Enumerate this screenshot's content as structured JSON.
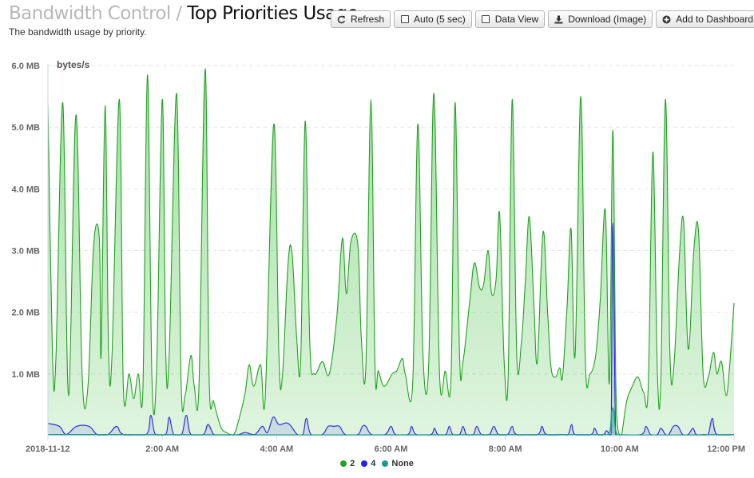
{
  "header": {
    "crumb": "Bandwidth Control",
    "separator": "/",
    "title": "Top Priorities Usage",
    "subtitle": "The bandwidth usage by priority."
  },
  "toolbar": {
    "refresh": "Refresh",
    "auto": "Auto (5 sec)",
    "data_view": "Data View",
    "download": "Download (Image)",
    "add_dashboard": "Add to Dashboard"
  },
  "icons": {
    "refresh": "refresh-icon",
    "auto": "checkbox-icon",
    "data_view": "checkbox-icon",
    "download": "download-icon",
    "add_dashboard": "plus-circle-icon"
  },
  "chart_data": {
    "type": "area",
    "unit_label": "bytes/s",
    "ylim": [
      0,
      6
    ],
    "y_ticks": [
      "6.0 MB",
      "5.0 MB",
      "4.0 MB",
      "3.0 MB",
      "2.0 MB",
      "1.0 MB"
    ],
    "y_tick_values": [
      6,
      5,
      4,
      3,
      2,
      1
    ],
    "xlim": [
      0,
      12
    ],
    "x_ticks": [
      "2018-11-12",
      "2:00 AM",
      "4:00 AM",
      "6:00 AM",
      "8:00 AM",
      "10:00 AM",
      "12:00 PM"
    ],
    "x_tick_values": [
      0,
      2,
      4,
      6,
      8,
      10,
      12
    ],
    "grid": true,
    "legend_position": "bottom",
    "series": [
      {
        "name": "2",
        "color": "#1fa21f",
        "points": [
          [
            0.0,
            5.4
          ],
          [
            0.08,
            1.3
          ],
          [
            0.14,
            1.25
          ],
          [
            0.26,
            5.4
          ],
          [
            0.36,
            0.65
          ],
          [
            0.49,
            5.2
          ],
          [
            0.6,
            0.95
          ],
          [
            0.7,
            0.8
          ],
          [
            0.8,
            3.1
          ],
          [
            0.9,
            3.2
          ],
          [
            0.93,
            1.3
          ],
          [
            1.0,
            5.35
          ],
          [
            1.06,
            1.4
          ],
          [
            1.12,
            1.3
          ],
          [
            1.25,
            5.45
          ],
          [
            1.32,
            0.75
          ],
          [
            1.42,
            1.0
          ],
          [
            1.5,
            0.6
          ],
          [
            1.58,
            1.0
          ],
          [
            1.66,
            0.7
          ],
          [
            1.74,
            5.85
          ],
          [
            1.82,
            0.9
          ],
          [
            1.9,
            1.05
          ],
          [
            2.0,
            5.45
          ],
          [
            2.06,
            1.35
          ],
          [
            2.12,
            1.3
          ],
          [
            2.25,
            5.55
          ],
          [
            2.33,
            0.85
          ],
          [
            2.4,
            0.65
          ],
          [
            2.5,
            1.3
          ],
          [
            2.56,
            0.8
          ],
          [
            2.64,
            0.75
          ],
          [
            2.75,
            5.95
          ],
          [
            2.82,
            0.9
          ],
          [
            2.9,
            0.55
          ],
          [
            3.02,
            0.15
          ],
          [
            3.12,
            0.05
          ],
          [
            3.25,
            0.02
          ],
          [
            3.35,
            0.3
          ],
          [
            3.45,
            0.7
          ],
          [
            3.52,
            1.15
          ],
          [
            3.6,
            0.8
          ],
          [
            3.72,
            1.15
          ],
          [
            3.8,
            0.6
          ],
          [
            3.95,
            5.05
          ],
          [
            4.04,
            1.3
          ],
          [
            4.1,
            0.95
          ],
          [
            4.2,
            2.8
          ],
          [
            4.27,
            2.95
          ],
          [
            4.35,
            1.6
          ],
          [
            4.42,
            1.2
          ],
          [
            4.5,
            5.1
          ],
          [
            4.58,
            1.5
          ],
          [
            4.66,
            1.0
          ],
          [
            4.8,
            1.2
          ],
          [
            4.92,
            1.0
          ],
          [
            5.05,
            1.9
          ],
          [
            5.15,
            3.2
          ],
          [
            5.22,
            2.3
          ],
          [
            5.3,
            3.15
          ],
          [
            5.42,
            3.1
          ],
          [
            5.48,
            1.6
          ],
          [
            5.56,
            1.1
          ],
          [
            5.65,
            5.45
          ],
          [
            5.72,
            1.1
          ],
          [
            5.78,
            1.05
          ],
          [
            5.88,
            0.8
          ],
          [
            6.02,
            1.0
          ],
          [
            6.1,
            1.05
          ],
          [
            6.2,
            1.25
          ],
          [
            6.25,
            1.0
          ],
          [
            6.38,
            0.85
          ],
          [
            6.47,
            5.05
          ],
          [
            6.56,
            1.3
          ],
          [
            6.66,
            1.15
          ],
          [
            6.75,
            5.55
          ],
          [
            6.85,
            1.0
          ],
          [
            6.95,
            1.05
          ],
          [
            7.05,
            0.95
          ],
          [
            7.12,
            5.4
          ],
          [
            7.2,
            1.3
          ],
          [
            7.26,
            1.2
          ],
          [
            7.38,
            2.2
          ],
          [
            7.46,
            2.8
          ],
          [
            7.55,
            2.4
          ],
          [
            7.62,
            2.45
          ],
          [
            7.7,
            3.0
          ],
          [
            7.76,
            2.3
          ],
          [
            7.84,
            2.55
          ],
          [
            7.9,
            3.6
          ],
          [
            7.98,
            1.2
          ],
          [
            8.05,
            0.95
          ],
          [
            8.12,
            5.45
          ],
          [
            8.2,
            1.3
          ],
          [
            8.28,
            1.5
          ],
          [
            8.35,
            2.5
          ],
          [
            8.42,
            3.55
          ],
          [
            8.5,
            2.1
          ],
          [
            8.56,
            1.2
          ],
          [
            8.66,
            3.3
          ],
          [
            8.74,
            2.0
          ],
          [
            8.8,
            1.1
          ],
          [
            8.88,
            0.95
          ],
          [
            8.95,
            1.1
          ],
          [
            9.0,
            0.95
          ],
          [
            9.08,
            2.1
          ],
          [
            9.15,
            3.35
          ],
          [
            9.22,
            1.3
          ],
          [
            9.32,
            5.5
          ],
          [
            9.4,
            1.2
          ],
          [
            9.48,
            1.0
          ],
          [
            9.58,
            1.3
          ],
          [
            9.66,
            2.2
          ],
          [
            9.75,
            3.65
          ],
          [
            9.82,
            0.85
          ],
          [
            9.88,
            4.95
          ],
          [
            9.93,
            1.0
          ],
          [
            9.97,
            0.1
          ],
          [
            10.03,
            0.0
          ],
          [
            10.12,
            0.55
          ],
          [
            10.22,
            0.8
          ],
          [
            10.32,
            0.95
          ],
          [
            10.42,
            0.7
          ],
          [
            10.5,
            0.8
          ],
          [
            10.58,
            4.6
          ],
          [
            10.66,
            1.0
          ],
          [
            10.72,
            0.95
          ],
          [
            10.8,
            5.45
          ],
          [
            10.88,
            1.3
          ],
          [
            10.95,
            1.15
          ],
          [
            11.05,
            3.0
          ],
          [
            11.12,
            3.45
          ],
          [
            11.2,
            1.4
          ],
          [
            11.3,
            3.05
          ],
          [
            11.38,
            3.3
          ],
          [
            11.46,
            1.0
          ],
          [
            11.55,
            0.95
          ],
          [
            11.64,
            1.35
          ],
          [
            11.7,
            1.0
          ],
          [
            11.78,
            1.2
          ],
          [
            11.86,
            0.65
          ],
          [
            11.92,
            1.1
          ],
          [
            12.0,
            2.15
          ]
        ]
      },
      {
        "name": "4",
        "color": "#2323e0",
        "points": [
          [
            0.0,
            0.2
          ],
          [
            0.2,
            0.15
          ],
          [
            0.32,
            0.02
          ],
          [
            0.5,
            0.15
          ],
          [
            0.72,
            0.15
          ],
          [
            0.86,
            0.02
          ],
          [
            1.05,
            0.02
          ],
          [
            1.2,
            0.15
          ],
          [
            1.32,
            0.02
          ],
          [
            1.72,
            0.02
          ],
          [
            1.8,
            0.33
          ],
          [
            1.88,
            0.02
          ],
          [
            2.06,
            0.02
          ],
          [
            2.12,
            0.3
          ],
          [
            2.2,
            0.02
          ],
          [
            2.34,
            0.02
          ],
          [
            2.42,
            0.33
          ],
          [
            2.5,
            0.02
          ],
          [
            2.72,
            0.02
          ],
          [
            2.8,
            0.18
          ],
          [
            2.9,
            0.02
          ],
          [
            3.02,
            0.01
          ],
          [
            3.3,
            0.01
          ],
          [
            3.45,
            0.05
          ],
          [
            3.62,
            0.02
          ],
          [
            3.75,
            0.15
          ],
          [
            3.84,
            0.05
          ],
          [
            3.94,
            0.3
          ],
          [
            4.04,
            0.18
          ],
          [
            4.2,
            0.2
          ],
          [
            4.36,
            0.02
          ],
          [
            4.46,
            0.02
          ],
          [
            4.52,
            0.28
          ],
          [
            4.6,
            0.02
          ],
          [
            4.8,
            0.02
          ],
          [
            4.9,
            0.15
          ],
          [
            5.0,
            0.15
          ],
          [
            5.1,
            0.15
          ],
          [
            5.2,
            0.02
          ],
          [
            5.42,
            0.02
          ],
          [
            5.5,
            0.15
          ],
          [
            5.56,
            0.15
          ],
          [
            5.66,
            0.02
          ],
          [
            5.9,
            0.02
          ],
          [
            6.0,
            0.15
          ],
          [
            6.08,
            0.02
          ],
          [
            6.3,
            0.02
          ],
          [
            6.36,
            0.15
          ],
          [
            6.44,
            0.02
          ],
          [
            6.7,
            0.02
          ],
          [
            6.76,
            0.12
          ],
          [
            6.82,
            0.02
          ],
          [
            6.96,
            0.02
          ],
          [
            7.02,
            0.15
          ],
          [
            7.08,
            0.02
          ],
          [
            7.2,
            0.02
          ],
          [
            7.26,
            0.15
          ],
          [
            7.32,
            0.02
          ],
          [
            7.44,
            0.02
          ],
          [
            7.5,
            0.15
          ],
          [
            7.58,
            0.02
          ],
          [
            7.72,
            0.02
          ],
          [
            7.8,
            0.15
          ],
          [
            7.88,
            0.02
          ],
          [
            8.04,
            0.02
          ],
          [
            8.12,
            0.15
          ],
          [
            8.2,
            0.02
          ],
          [
            8.56,
            0.02
          ],
          [
            8.64,
            0.15
          ],
          [
            8.72,
            0.02
          ],
          [
            9.0,
            0.02
          ],
          [
            9.1,
            0.02
          ],
          [
            9.16,
            0.18
          ],
          [
            9.22,
            0.02
          ],
          [
            9.5,
            0.02
          ],
          [
            9.56,
            0.12
          ],
          [
            9.62,
            0.02
          ],
          [
            9.72,
            0.02
          ],
          [
            9.77,
            0.08
          ],
          [
            9.82,
            0.02
          ],
          [
            9.85,
            0.02
          ],
          [
            9.88,
            3.45
          ],
          [
            9.93,
            0.02
          ],
          [
            10.0,
            0.0
          ],
          [
            10.38,
            0.02
          ],
          [
            10.46,
            0.15
          ],
          [
            10.54,
            0.02
          ],
          [
            10.66,
            0.02
          ],
          [
            10.72,
            0.12
          ],
          [
            10.8,
            0.02
          ],
          [
            10.86,
            0.02
          ],
          [
            10.94,
            0.15
          ],
          [
            11.02,
            0.15
          ],
          [
            11.1,
            0.02
          ],
          [
            11.2,
            0.02
          ],
          [
            11.28,
            0.12
          ],
          [
            11.34,
            0.02
          ],
          [
            11.48,
            0.02
          ],
          [
            11.55,
            0.02
          ],
          [
            11.62,
            0.28
          ],
          [
            11.7,
            0.02
          ],
          [
            12.0,
            0.02
          ]
        ]
      },
      {
        "name": "None",
        "color": "#1a9a8a",
        "points": [
          [
            0.0,
            0.02
          ],
          [
            9.8,
            0.02
          ],
          [
            9.86,
            0.4
          ],
          [
            9.9,
            0.4
          ],
          [
            9.96,
            0.02
          ],
          [
            12.0,
            0.02
          ]
        ]
      }
    ]
  }
}
